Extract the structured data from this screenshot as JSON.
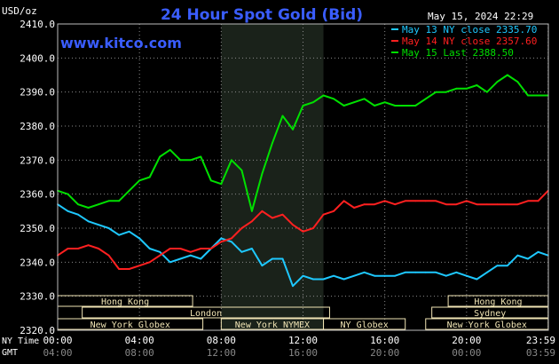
{
  "title": "24 Hour Spot Gold (Bid)",
  "unit_label": "USD/oz",
  "website": "www.kitco.com",
  "timestamp": "May 15, 2024 22:29",
  "colors": {
    "background": "#000000",
    "title": "#3a5dff",
    "website": "#3a5dff",
    "axis_text": "#ffffff",
    "grid": "#8a8a8a",
    "session_shade": "#1a221a",
    "session_bar_bg": "#f0e4b4",
    "session_bar_text": "#000000"
  },
  "axis_titles": {
    "ny_time": "NY Time",
    "gmt": "GMT"
  },
  "x_ticks_ny": [
    "00:00",
    "04:00",
    "08:00",
    "12:00",
    "16:00",
    "20:00",
    "23:59"
  ],
  "x_ticks_gmt": [
    "04:00",
    "08:00",
    "12:00",
    "16:00",
    "20:00",
    "00:00",
    "03:59"
  ],
  "y_ticks": [
    "2410.0",
    "2400.0",
    "2390.0",
    "2380.0",
    "2370.0",
    "2360.0",
    "2350.0",
    "2340.0",
    "2330.0",
    "2320.0"
  ],
  "sessions": [
    {
      "label": "Hong Kong",
      "start_h": 0.0,
      "end_h": 6.6,
      "row": 0
    },
    {
      "label": "London",
      "start_h": 1.2,
      "end_h": 13.3,
      "row": 1
    },
    {
      "label": "New York Globex",
      "start_h": 0.0,
      "end_h": 7.1,
      "row": 2
    },
    {
      "label": "New York NYMEX",
      "start_h": 8.0,
      "end_h": 13.0,
      "row": 2
    },
    {
      "label": "NY Globex",
      "start_h": 13.0,
      "end_h": 17.0,
      "row": 2
    },
    {
      "label": "Hong Kong",
      "start_h": 19.1,
      "end_h": 23.99,
      "row": 0
    },
    {
      "label": "Sydney",
      "start_h": 18.3,
      "end_h": 23.99,
      "row": 1
    },
    {
      "label": "New York Globex",
      "start_h": 18.0,
      "end_h": 23.99,
      "row": 2
    }
  ],
  "chart_data": {
    "type": "line",
    "title": "24 Hour Spot Gold (Bid)",
    "ylabel": "USD/oz",
    "ylim": [
      2320,
      2410
    ],
    "xlim": [
      0,
      24
    ],
    "x_unit": "hour (NY time)",
    "shaded_region": [
      8,
      13
    ],
    "series": [
      {
        "name": "May 13 NY close 2335.70",
        "color": "#1ec8ff",
        "x": [
          0,
          0.5,
          1,
          1.5,
          2,
          2.5,
          3,
          3.5,
          4,
          4.5,
          5,
          5.5,
          6,
          6.5,
          7,
          7.5,
          8,
          8.5,
          9,
          9.5,
          10,
          10.5,
          11,
          11.5,
          12,
          12.5,
          13,
          13.5,
          14,
          14.5,
          15,
          15.5,
          16,
          16.5,
          17,
          17.5,
          18,
          18.5,
          19,
          19.5,
          20,
          20.5,
          21,
          21.5,
          22,
          22.5,
          23,
          23.5,
          23.99
        ],
        "values": [
          2357,
          2355,
          2354,
          2352,
          2351,
          2350,
          2348,
          2349,
          2347,
          2344,
          2343,
          2340,
          2341,
          2342,
          2341,
          2344,
          2347,
          2346,
          2343,
          2344,
          2339,
          2341,
          2341,
          2333,
          2336,
          2335,
          2335,
          2336,
          2335,
          2336,
          2337,
          2336,
          2336,
          2336,
          2337,
          2337,
          2337,
          2337,
          2336,
          2337,
          2336,
          2335,
          2337,
          2339,
          2339,
          2342,
          2341,
          2343,
          2342
        ]
      },
      {
        "name": "May 14 NY close 2357.60",
        "color": "#ff2020",
        "x": [
          0,
          0.5,
          1,
          1.5,
          2,
          2.5,
          3,
          3.5,
          4,
          4.5,
          5,
          5.5,
          6,
          6.5,
          7,
          7.5,
          8,
          8.5,
          9,
          9.5,
          10,
          10.5,
          11,
          11.5,
          12,
          12.5,
          13,
          13.5,
          14,
          14.5,
          15,
          15.5,
          16,
          16.5,
          17,
          17.5,
          18,
          18.5,
          19,
          19.5,
          20,
          20.5,
          21,
          21.5,
          22,
          22.5,
          23,
          23.5,
          23.99
        ],
        "values": [
          2342,
          2344,
          2344,
          2345,
          2344,
          2342,
          2338,
          2338,
          2339,
          2340,
          2342,
          2344,
          2344,
          2343,
          2344,
          2344,
          2346,
          2347,
          2350,
          2352,
          2355,
          2353,
          2354,
          2351,
          2349,
          2350,
          2354,
          2355,
          2358,
          2356,
          2357,
          2357,
          2358,
          2357,
          2358,
          2358,
          2358,
          2358,
          2357,
          2357,
          2358,
          2357,
          2357,
          2357,
          2357,
          2357,
          2358,
          2358,
          2361
        ]
      },
      {
        "name": "May 15 Last 2388.50",
        "color": "#00e000",
        "x": [
          0,
          0.5,
          1,
          1.5,
          2,
          2.5,
          3,
          3.5,
          4,
          4.5,
          5,
          5.5,
          6,
          6.5,
          7,
          7.5,
          8,
          8.5,
          9,
          9.5,
          10,
          10.5,
          11,
          11.5,
          12,
          12.5,
          13,
          13.5,
          14,
          14.5,
          15,
          15.5,
          16,
          16.5,
          17,
          17.5,
          18,
          18.5,
          19,
          19.5,
          20,
          20.5,
          21,
          21.5,
          22,
          22.5,
          23,
          23.5,
          23.99
        ],
        "values": [
          2361,
          2360,
          2357,
          2356,
          2357,
          2358,
          2358,
          2361,
          2364,
          2365,
          2371,
          2373,
          2370,
          2370,
          2371,
          2364,
          2363,
          2370,
          2367,
          2355,
          2366,
          2375,
          2383,
          2379,
          2386,
          2387,
          2389,
          2388,
          2386,
          2387,
          2388,
          2386,
          2387,
          2386,
          2386,
          2386,
          2388,
          2390,
          2390,
          2391,
          2391,
          2392,
          2390,
          2393,
          2395,
          2393,
          2389,
          2389,
          2389
        ]
      }
    ],
    "legend": [
      {
        "label": "May 13 NY close 2335.70",
        "color": "#1ec8ff"
      },
      {
        "label": "May 14 NY close 2357.60",
        "color": "#ff2020"
      },
      {
        "label": "May 15 Last 2388.50",
        "color": "#00e000"
      }
    ],
    "legend_position": "top-right",
    "grid": true
  }
}
